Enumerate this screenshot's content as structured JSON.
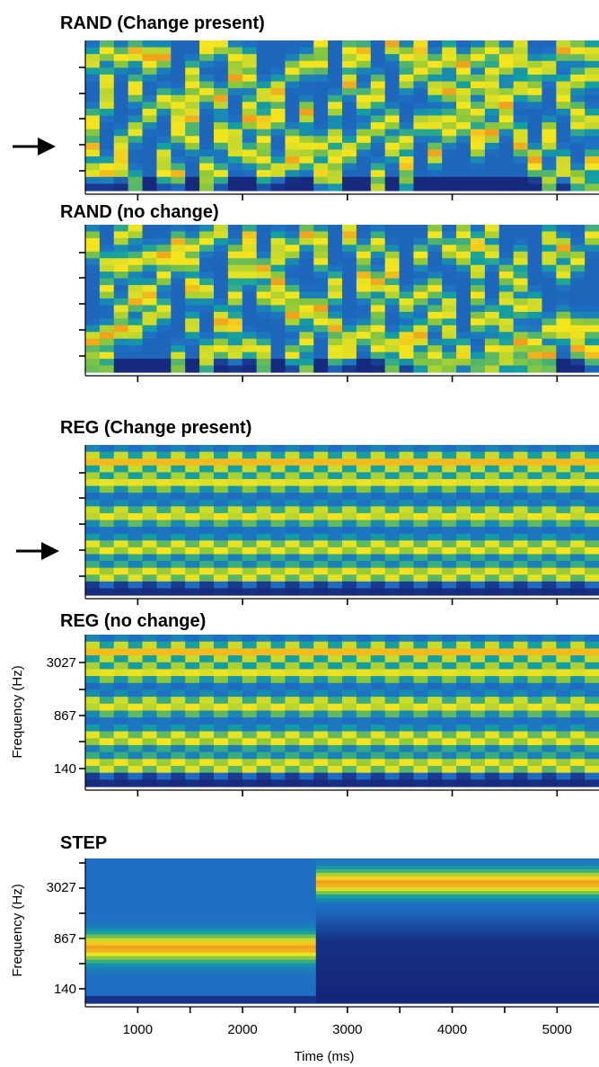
{
  "colors": {
    "low": "#141a6e",
    "mid_low": "#1e6fc4",
    "mid": "#14a0a0",
    "mid_high": "#8cc83c",
    "high": "#f5e61e",
    "peak": "#f0a01e"
  },
  "chart_data": [
    {
      "type": "heatmap",
      "title": "RAND (Change present)",
      "pattern": "random",
      "change_marker": true,
      "xlim": [
        500,
        5400
      ],
      "xticks": [
        1000,
        2000,
        3000,
        4000,
        5000
      ],
      "ytick_labels": [],
      "ylabel": "",
      "xlabel": ""
    },
    {
      "type": "heatmap",
      "title": "RAND (no change)",
      "pattern": "random",
      "change_marker": false,
      "xlim": [
        500,
        5400
      ],
      "xticks": [
        1000,
        2000,
        3000,
        4000,
        5000
      ],
      "ytick_labels": [],
      "ylabel": "",
      "xlabel": ""
    },
    {
      "type": "heatmap",
      "title": "REG (Change present)",
      "pattern": "regular",
      "change_marker": true,
      "xlim": [
        500,
        5400
      ],
      "xticks": [
        1000,
        2000,
        3000,
        4000,
        5000
      ],
      "ytick_labels": [],
      "ylabel": "",
      "xlabel": ""
    },
    {
      "type": "heatmap",
      "title": "REG (no change)",
      "pattern": "regular",
      "change_marker": false,
      "xlim": [
        500,
        5400
      ],
      "xticks": [
        1000,
        2000,
        3000,
        4000,
        5000
      ],
      "ytick_labels": [
        "3027",
        "867",
        "140"
      ],
      "ylabel": "Frequency (Hz)",
      "xlabel": ""
    },
    {
      "type": "heatmap",
      "title": "STEP",
      "pattern": "step",
      "change_marker": false,
      "step_time_ms": 2700,
      "xlim": [
        500,
        5400
      ],
      "xticks": [
        1000,
        2000,
        3000,
        4000,
        5000
      ],
      "xtick_labels": [
        "1000",
        "2000",
        "3000",
        "4000",
        "5000"
      ],
      "ytick_labels": [
        "3027",
        "867",
        "140"
      ],
      "ylabel": "Frequency (Hz)",
      "xlabel": "Time (ms)"
    }
  ]
}
